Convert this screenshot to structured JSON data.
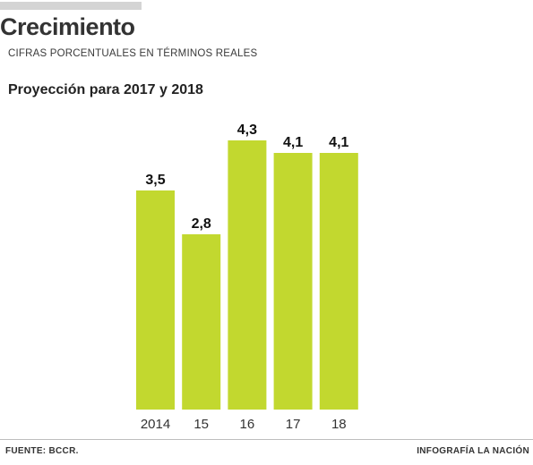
{
  "header": {
    "title": "Crecimiento",
    "subtitle": "CIFRAS PORCENTUALES EN TÉRMINOS REALES",
    "section": "Proyección para 2017 y 2018"
  },
  "footer": {
    "source": "FUENTE: BCCR.",
    "credit": "INFOGRAFÍA LA NACIÓN"
  },
  "colors": {
    "bar": "#c2d82f",
    "rule": "#d4d4d4"
  },
  "chart_data": {
    "type": "bar",
    "title": "Proyección para 2017 y 2018",
    "categories": [
      "2014",
      "15",
      "16",
      "17",
      "18"
    ],
    "values": [
      3.5,
      2.8,
      4.3,
      4.1,
      4.1
    ],
    "value_labels": [
      "3,5",
      "2,8",
      "4,3",
      "4,1",
      "4,1"
    ],
    "xlabel": "",
    "ylabel": "",
    "ylim": [
      0,
      4.3
    ],
    "grid": false,
    "legend": "none"
  }
}
